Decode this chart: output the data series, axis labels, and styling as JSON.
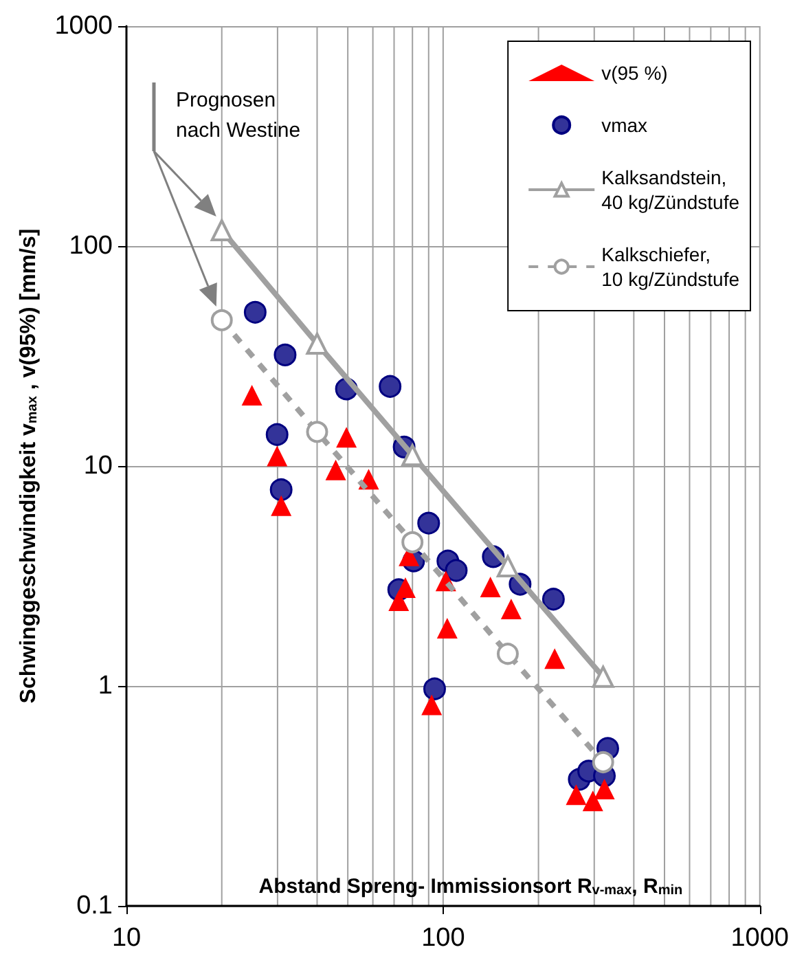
{
  "chart_data": {
    "type": "scatter",
    "xlabel": "Abstand Spreng- Immissionsort R$_{v-max}$, R$_{min}$",
    "ylabel": "Schwinggeschwindigkeit v$_{max}$ , v(95%) [mm/s]",
    "annotations": [
      "Prognosen\nnach Westine"
    ],
    "log": "xy",
    "xlim": [
      10,
      1000
    ],
    "xticks": [
      10,
      {
        "value": 20,
        "label": null
      },
      {
        "value": 30,
        "label": null
      },
      {
        "value": 40,
        "label": null
      },
      {
        "value": 50,
        "label": null
      },
      {
        "value": 60,
        "label": null
      },
      {
        "value": 70,
        "label": null
      },
      {
        "value": 80,
        "label": null
      },
      {
        "value": 90,
        "label": null
      },
      100,
      {
        "value": 200,
        "label": null
      },
      {
        "value": 300,
        "label": null
      },
      {
        "value": 400,
        "label": null
      },
      {
        "value": 500,
        "label": null
      },
      {
        "value": 600,
        "label": null
      },
      {
        "value": 700,
        "label": null
      },
      {
        "value": 800,
        "label": null
      },
      {
        "value": 900,
        "label": null
      },
      1000
    ],
    "ylim": [
      0.1,
      1000
    ],
    "yticks": [
      0.1,
      1,
      10,
      100,
      1000
    ],
    "grid": true,
    "legend": "top right",
    "series": [
      {
        "name": "v(95 %)",
        "marker": "triangle",
        "color": "#ff0000",
        "x": [
          24.9,
          29.9,
          30.8,
          45.8,
          49.5,
          58.2,
          72.4,
          76,
          78,
          92,
          102,
          103,
          141,
          164,
          225,
          263,
          297,
          323
        ],
        "values": [
          21,
          11.1,
          6.6,
          9.6,
          13.5,
          8.7,
          2.44,
          2.8,
          3.9,
          0.82,
          3.0,
          1.83,
          2.82,
          2.24,
          1.33,
          0.32,
          0.3,
          0.34
        ]
      },
      {
        "name": "vmax",
        "marker": "circle",
        "color": "#333399",
        "x": [
          25.5,
          29.9,
          30.8,
          31.7,
          49.5,
          68,
          72.4,
          75.3,
          80.7,
          90,
          94,
          103.5,
          110,
          144,
          175,
          223,
          269,
          288,
          323,
          331
        ],
        "values": [
          50,
          13.9,
          7.8,
          32,
          22.4,
          23,
          2.74,
          12.2,
          3.7,
          5.5,
          0.97,
          3.7,
          3.35,
          3.87,
          2.9,
          2.48,
          0.376,
          0.41,
          0.39,
          0.52
        ]
      },
      {
        "name": "Kalksandstein,\n40 kg/Zündstufe",
        "type": "line",
        "marker": "triangle",
        "line_style": "solid",
        "color": "#a0a0a0",
        "x": [
          20,
          40,
          80,
          160,
          320
        ],
        "values": [
          118,
          36,
          11.2,
          3.5,
          1.1
        ]
      },
      {
        "name": "Kalkschiefer,\n10 kg/Zündstufe",
        "type": "line",
        "marker": "circle",
        "line_style": "dashed",
        "color": "#a0a0a0",
        "x": [
          20,
          40,
          80,
          160,
          320
        ],
        "values": [
          46,
          14.3,
          4.5,
          1.4,
          0.45
        ]
      }
    ]
  }
}
